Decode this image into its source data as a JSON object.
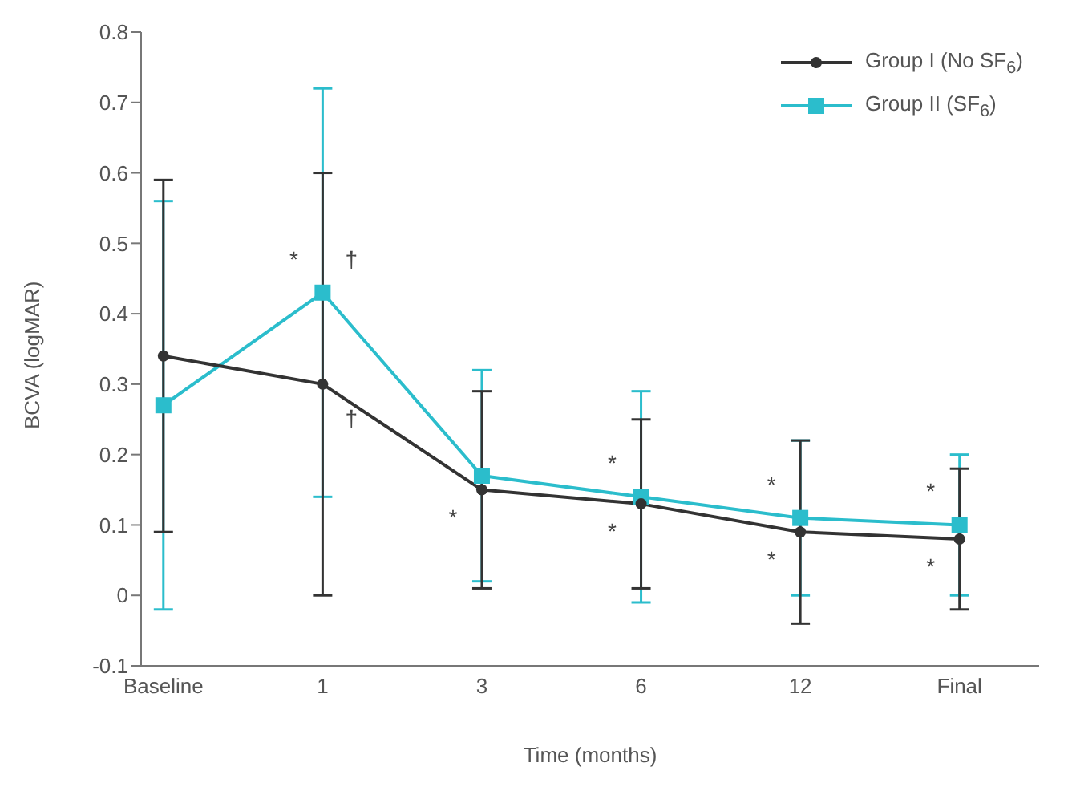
{
  "chart_data": {
    "type": "line",
    "xlabel": "Time (months)",
    "ylabel": "BCVA (logMAR)",
    "categories": [
      "Baseline",
      "1",
      "3",
      "6",
      "12",
      "Final"
    ],
    "series": [
      {
        "name": "Group I (No SF$_{6}$)",
        "color": "#333333",
        "marker": "circle",
        "values": [
          0.34,
          0.3,
          0.15,
          0.13,
          0.09,
          0.08
        ],
        "errors": [
          0.25,
          0.3,
          0.14,
          0.12,
          0.13,
          0.1
        ]
      },
      {
        "name": "Group II (SF$_{6}$)",
        "color": "#2bbdcc",
        "marker": "square",
        "values": [
          0.27,
          0.43,
          0.17,
          0.14,
          0.11,
          0.1
        ],
        "errors": [
          0.29,
          0.29,
          0.15,
          0.15,
          0.11,
          0.1
        ]
      }
    ],
    "ylim": [
      -0.1,
      0.8
    ],
    "yticks": [
      -0.1,
      0,
      0.1,
      0.2,
      0.3,
      0.4,
      0.5,
      0.6,
      0.7,
      0.8
    ],
    "grid": false,
    "legend": "top right",
    "annotations": [
      {
        "text": "*",
        "x": "1",
        "y": 0.43
      },
      {
        "text": "†",
        "x": "1",
        "y": 0.43
      },
      {
        "text": "†",
        "x": "1",
        "y": 0.3
      },
      {
        "text": "*",
        "x": "3",
        "y": 0.15
      },
      {
        "text": "*",
        "x": "6",
        "y": 0.14
      },
      {
        "text": "*",
        "x": "6",
        "y": 0.13
      },
      {
        "text": "*",
        "x": "12",
        "y": 0.11
      },
      {
        "text": "*",
        "x": "12",
        "y": 0.09
      },
      {
        "text": "*",
        "x": "Final",
        "y": 0.1
      },
      {
        "text": "*",
        "x": "Final",
        "y": 0.08
      }
    ]
  }
}
